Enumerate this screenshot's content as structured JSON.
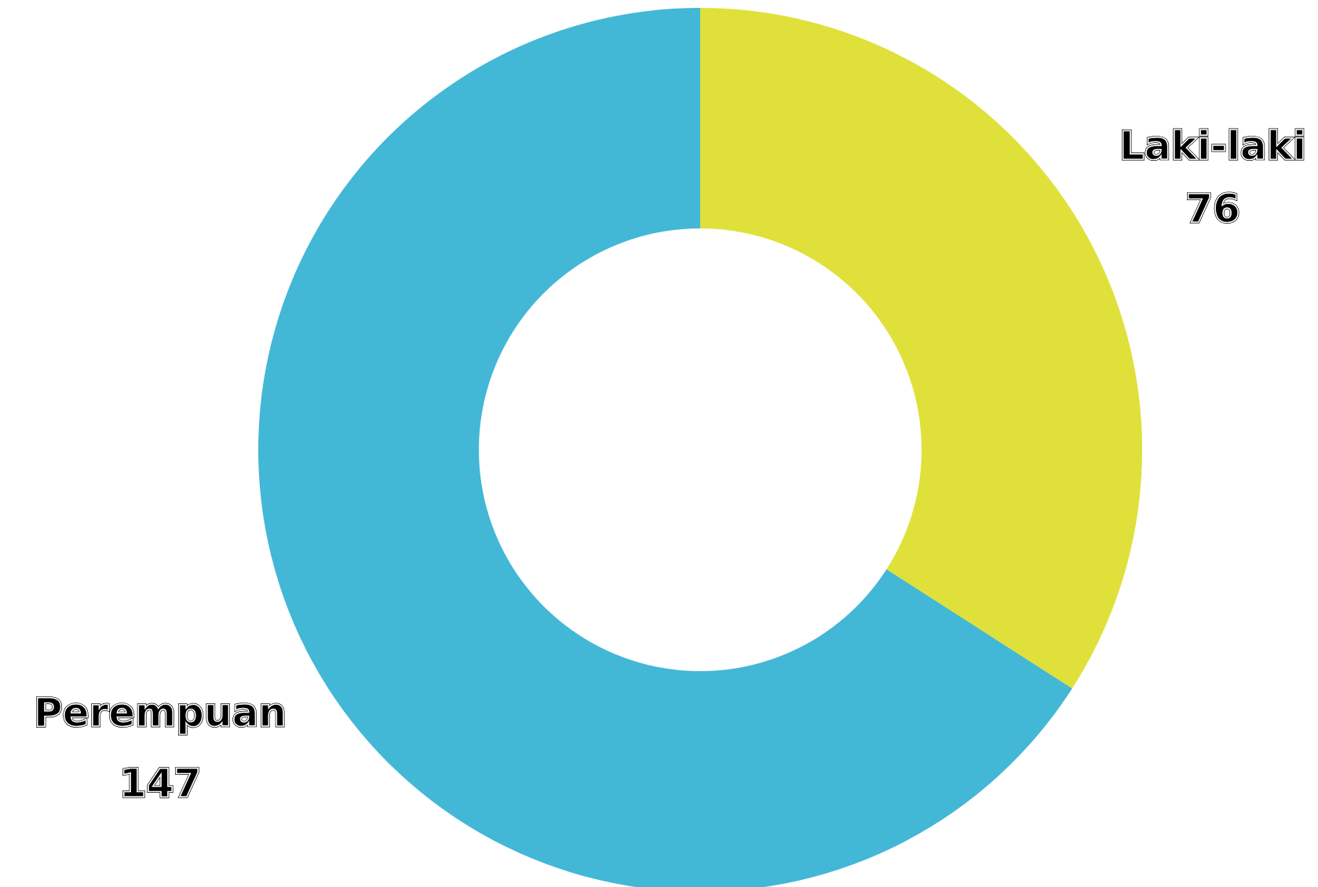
{
  "chart_data": {
    "type": "pie",
    "donut": true,
    "start_angle_deg": 0,
    "direction": "clockwise",
    "slices": [
      {
        "label": "Laki-laki",
        "value": 76,
        "color": "#e0e03a"
      },
      {
        "label": "Perempuan",
        "value": 147,
        "color": "#43b7d6"
      }
    ],
    "legend": "none",
    "data_labels": "outside"
  }
}
